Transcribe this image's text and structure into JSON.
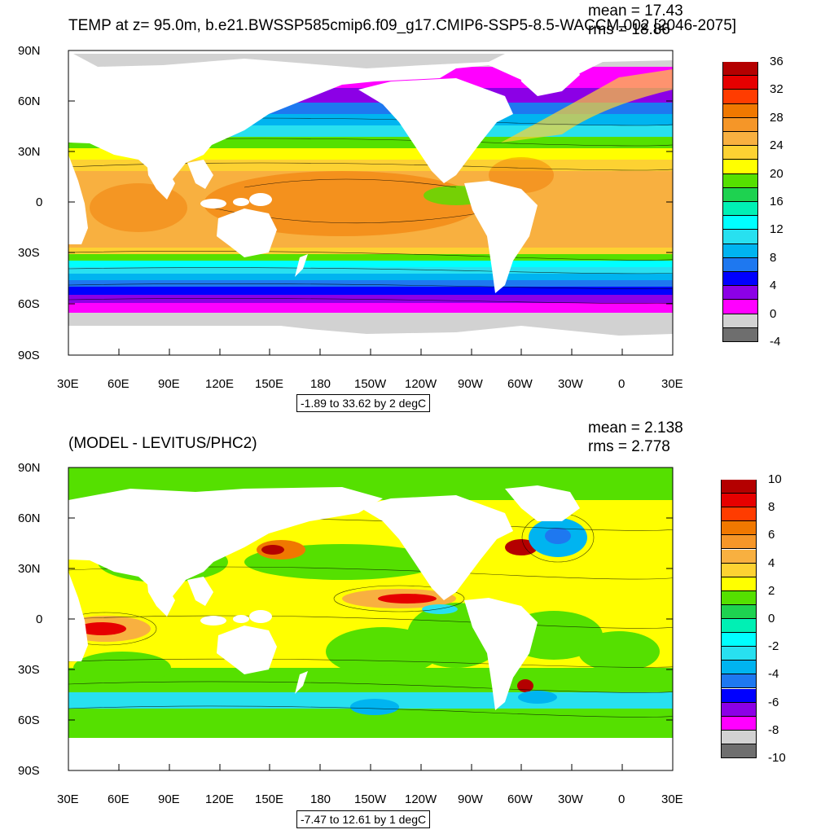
{
  "panels": [
    {
      "title": "TEMP at z=  95.0m, b.e21.BWSSP585cmip6.f09_g17.CMIP6-SSP5-8.5-WACCM.002 [2046-2075]",
      "mean_text": "mean = 17.43",
      "rms_text": "rms = 18.86",
      "info_text": "-1.89 to 33.62 by 2 degC",
      "y_ticks": [
        "90N",
        "60N",
        "30N",
        "0",
        "30S",
        "60S",
        "90S"
      ],
      "x_ticks": [
        "30E",
        "60E",
        "90E",
        "120E",
        "150E",
        "180",
        "150W",
        "120W",
        "90W",
        "60W",
        "30W",
        "0",
        "30E"
      ],
      "colorbar": {
        "labels": [
          "36",
          "32",
          "28",
          "24",
          "20",
          "16",
          "12",
          "8",
          "4",
          "0",
          "-4"
        ],
        "colors": [
          "#b40000",
          "#e60000",
          "#ff3c00",
          "#f07800",
          "#f59628",
          "#f8b040",
          "#fdd232",
          "#ffff00",
          "#55e000",
          "#1ed250",
          "#00f0b4",
          "#00ffff",
          "#28e0f0",
          "#00b4f0",
          "#1e78f0",
          "#0000ff",
          "#8c00e6",
          "#ff00ff",
          "#d2d2d2",
          "#6e6e6e"
        ]
      }
    },
    {
      "title": "(MODEL - LEVITUS/PHC2)",
      "mean_text": "mean = 2.138",
      "rms_text": "rms = 2.778",
      "info_text": "-7.47 to 12.61 by 1 degC",
      "y_ticks": [
        "90N",
        "60N",
        "30N",
        "0",
        "30S",
        "60S",
        "90S"
      ],
      "x_ticks": [
        "30E",
        "60E",
        "90E",
        "120E",
        "150E",
        "180",
        "150W",
        "120W",
        "90W",
        "60W",
        "30W",
        "0",
        "30E"
      ],
      "colorbar": {
        "labels": [
          "10",
          "8",
          "6",
          "4",
          "2",
          "0",
          "-2",
          "-4",
          "-6",
          "-8",
          "-10"
        ],
        "colors": [
          "#b40000",
          "#e60000",
          "#ff3c00",
          "#f07800",
          "#f59628",
          "#f8b040",
          "#fdd232",
          "#ffff00",
          "#55e000",
          "#1ed250",
          "#00f0b4",
          "#00ffff",
          "#28e0f0",
          "#00b4f0",
          "#1e78f0",
          "#0000ff",
          "#8c00e6",
          "#ff00ff",
          "#d2d2d2",
          "#6e6e6e"
        ]
      }
    }
  ]
}
